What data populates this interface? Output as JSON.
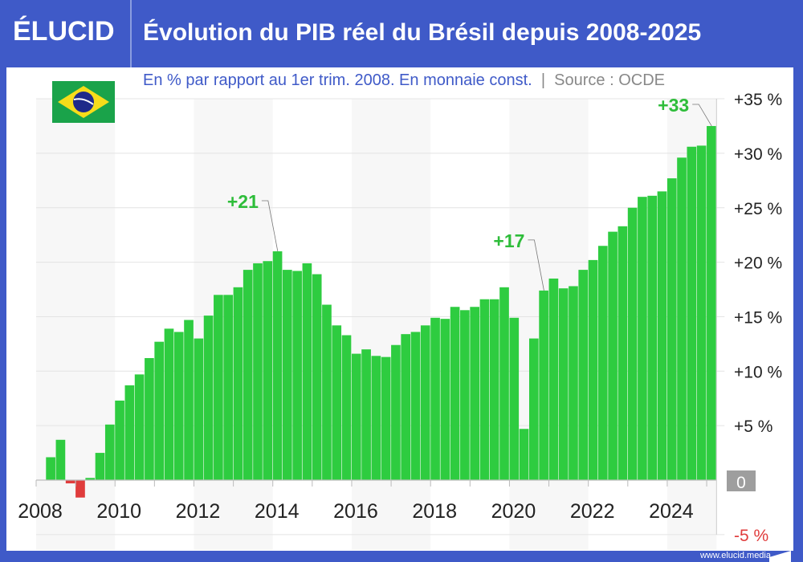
{
  "header": {
    "logo": "ÉLUCID",
    "title": "Évolution du PIB réel du Brésil depuis 2008-2025"
  },
  "subtitle": {
    "text": "En % par rapport au 1er trim. 2008. En monnaie const.",
    "separator": "|",
    "source": "Source : OCDE"
  },
  "footer": {
    "url": "www.elucid.media"
  },
  "flag": {
    "country": "Brazil",
    "icon": "brazil-flag-icon"
  },
  "colors": {
    "positive": "#2ecc40",
    "negative": "#e03c3c",
    "brand": "#3f5ac8",
    "label_green": "#2ebd3a"
  },
  "chart_data": {
    "type": "bar",
    "title": "Évolution du PIB réel du Brésil depuis 2008-2025",
    "ylabel": "En % par rapport au 1er trim. 2008",
    "frequency": "quarterly",
    "start": "2008-Q1",
    "ylim": [
      -5,
      35
    ],
    "yticks": [
      "+35 %",
      "+30 %",
      "+25 %",
      "+20 %",
      "+15 %",
      "+10 %",
      "+5 %",
      "0",
      "-5 %"
    ],
    "ytick_values": [
      35,
      30,
      25,
      20,
      15,
      10,
      5,
      0,
      -5
    ],
    "xticks": [
      "2008",
      "2010",
      "2012",
      "2014",
      "2016",
      "2018",
      "2020",
      "2022",
      "2024"
    ],
    "grid": true,
    "values": [
      0,
      2.1,
      3.7,
      -0.3,
      -1.6,
      0.2,
      2.5,
      5.1,
      7.3,
      8.7,
      9.7,
      11.2,
      12.7,
      13.9,
      13.6,
      14.7,
      13.0,
      15.1,
      17.0,
      17.0,
      17.7,
      19.3,
      19.9,
      20.1,
      21.0,
      19.3,
      19.2,
      19.9,
      18.9,
      16.1,
      14.2,
      13.3,
      11.6,
      12.0,
      11.4,
      11.3,
      12.4,
      13.4,
      13.6,
      14.2,
      14.9,
      14.8,
      15.9,
      15.6,
      15.9,
      16.6,
      16.6,
      17.7,
      14.9,
      4.7,
      13.0,
      17.4,
      18.5,
      17.6,
      17.8,
      19.3,
      20.2,
      21.5,
      22.8,
      23.3,
      25.0,
      26.0,
      26.1,
      26.5,
      27.7,
      29.6,
      30.6,
      30.7,
      32.5
    ],
    "annotations": [
      {
        "label": "+21",
        "index": 24
      },
      {
        "label": "+17",
        "index": 51
      },
      {
        "label": "+33",
        "index": 68
      }
    ]
  }
}
